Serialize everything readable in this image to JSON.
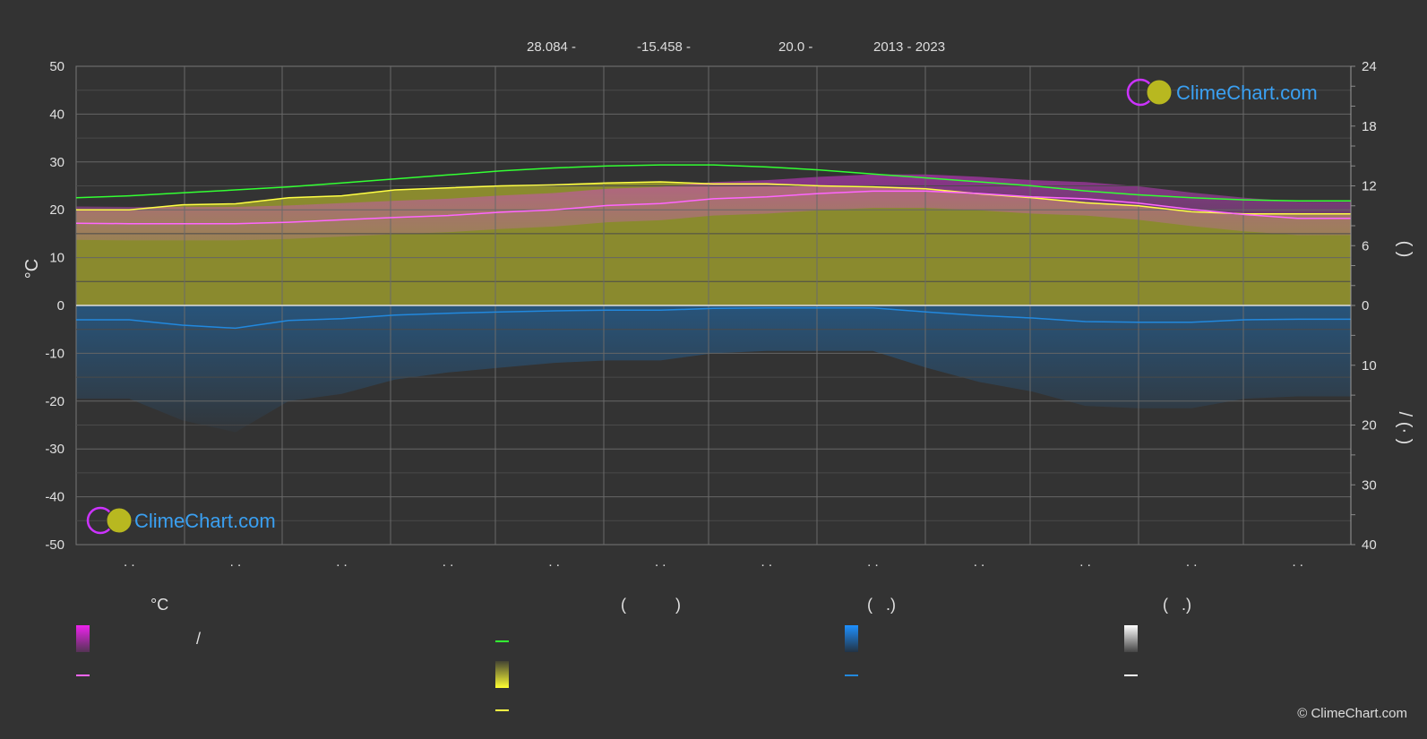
{
  "header": {
    "lat": "28.084 -",
    "lon": "-15.458 -",
    "elev": "20.0 -",
    "years": "2013 - 2023"
  },
  "logo_text": "ClimeChart.com",
  "copyright": "© ClimeChart.com",
  "legend": {
    "group1_title": "°C",
    "group2_title": "(           )",
    "group3_title": "(   .)",
    "group4_title": "(   .)",
    "slash": "/"
  },
  "colors": {
    "background": "#333333",
    "grid": "#5a5a5a",
    "daylight": "#33ff33",
    "sunshine": "#ffff44",
    "temp_avg": "#ff66ff",
    "temp_band": "#dd22dd",
    "sunshine_fill": "#9a9a2e",
    "precip": "#2288dd",
    "snow": "#ffffff"
  },
  "chart_data": {
    "type": "line",
    "month_labels": [
      ". .",
      ". .",
      ". .",
      ". .",
      ". .",
      ". .",
      ". .",
      ". .",
      ". .",
      ". .",
      ". .",
      ". ."
    ],
    "left_axis": {
      "title": "°C",
      "range": [
        -50,
        50
      ],
      "ticks": [
        50,
        40,
        30,
        20,
        10,
        0,
        -10,
        -20,
        -30,
        -40,
        -50
      ]
    },
    "right_axis_top": {
      "range": [
        0,
        24
      ],
      "ticks": [
        24,
        18,
        12,
        6,
        0
      ],
      "title": "(   )"
    },
    "right_axis_bottom": {
      "range": [
        0,
        40
      ],
      "ticks": [
        0,
        10,
        20,
        30,
        40
      ],
      "title": "/ (·  )"
    },
    "grid": true,
    "x": [
      0,
      0.5,
      1,
      1.5,
      2,
      2.5,
      3,
      3.5,
      4,
      4.5,
      5,
      5.5,
      6,
      6.5,
      7,
      7.5,
      8,
      8.5,
      9,
      9.5,
      10,
      10.5,
      11,
      11.5,
      12
    ],
    "series": [
      {
        "key": "daylight",
        "axis": "right_top",
        "values": [
          10.8,
          11.0,
          11.3,
          11.6,
          11.9,
          12.3,
          12.7,
          13.1,
          13.5,
          13.8,
          14.0,
          14.1,
          14.1,
          13.9,
          13.6,
          13.2,
          12.8,
          12.4,
          12.0,
          11.5,
          11.1,
          10.8,
          10.6,
          10.5,
          10.5
        ]
      },
      {
        "key": "sunshine",
        "axis": "right_top",
        "values": [
          9.6,
          9.6,
          10.1,
          10.2,
          10.8,
          11.0,
          11.6,
          11.8,
          12.0,
          12.1,
          12.3,
          12.4,
          12.2,
          12.2,
          12.0,
          11.9,
          11.7,
          11.2,
          10.8,
          10.3,
          10.0,
          9.4,
          9.2,
          9.2,
          9.2
        ]
      },
      {
        "key": "temp_avg",
        "axis": "left",
        "values": [
          17.2,
          17.1,
          17.1,
          17.1,
          17.4,
          17.9,
          18.4,
          18.8,
          19.5,
          20.0,
          20.9,
          21.3,
          22.3,
          22.7,
          23.4,
          23.9,
          23.9,
          23.4,
          22.7,
          22.3,
          21.4,
          20.1,
          19.0,
          18.2,
          18.2
        ]
      },
      {
        "key": "precip",
        "axis": "right_bottom",
        "values": [
          2.4,
          2.4,
          3.3,
          3.8,
          2.5,
          2.2,
          1.6,
          1.3,
          1.1,
          0.9,
          0.8,
          0.8,
          0.5,
          0.4,
          0.4,
          0.4,
          1.1,
          1.7,
          2.1,
          2.7,
          2.8,
          2.8,
          2.4,
          2.3,
          2.3
        ]
      }
    ]
  }
}
